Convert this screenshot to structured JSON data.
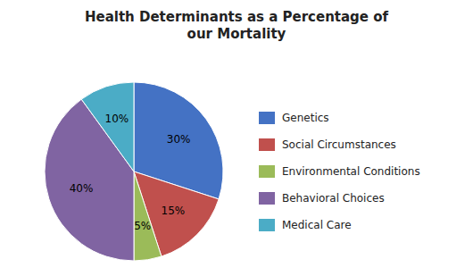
{
  "chart_data": {
    "type": "pie",
    "title": "Health Determinants as a Percentage of\nour Mortality",
    "categories": [
      "Genetics",
      "Social Circumstances",
      "Environmental Conditions",
      "Behavioral Choices",
      "Medical Care"
    ],
    "values": [
      30,
      15,
      5,
      40,
      10
    ],
    "value_labels": [
      "30%",
      "15%",
      "5%",
      "40%",
      "10%"
    ],
    "colors": [
      "#4472C4",
      "#C0504D",
      "#9BBB59",
      "#8064A2",
      "#4BACC6"
    ],
    "data_labels": true,
    "legend": "right"
  }
}
